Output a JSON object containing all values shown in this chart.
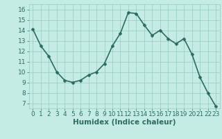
{
  "x": [
    0,
    1,
    2,
    3,
    4,
    5,
    6,
    7,
    8,
    9,
    10,
    11,
    12,
    13,
    14,
    15,
    16,
    17,
    18,
    19,
    20,
    21,
    22,
    23
  ],
  "y": [
    14.1,
    12.5,
    11.5,
    10.0,
    9.2,
    9.0,
    9.2,
    9.7,
    10.0,
    10.8,
    12.5,
    13.7,
    15.7,
    15.6,
    14.5,
    13.5,
    14.0,
    13.2,
    12.7,
    13.2,
    11.7,
    9.5,
    8.0,
    6.7
  ],
  "xlabel": "Humidex (Indice chaleur)",
  "ylim": [
    6.5,
    16.5
  ],
  "xlim": [
    -0.5,
    23.5
  ],
  "yticks": [
    7,
    8,
    9,
    10,
    11,
    12,
    13,
    14,
    15,
    16
  ],
  "xticks": [
    0,
    1,
    2,
    3,
    4,
    5,
    6,
    7,
    8,
    9,
    10,
    11,
    12,
    13,
    14,
    15,
    16,
    17,
    18,
    19,
    20,
    21,
    22,
    23
  ],
  "bg_color": "#c5ece4",
  "grid_color": "#9ecfc7",
  "line_color": "#2a6b63",
  "marker_color": "#2a6b63",
  "tick_label_color": "#2a6b63",
  "xlabel_color": "#2a6b63",
  "xlabel_fontsize": 7.5,
  "tick_fontsize": 6.5,
  "line_width": 1.2,
  "marker_size": 2.5
}
